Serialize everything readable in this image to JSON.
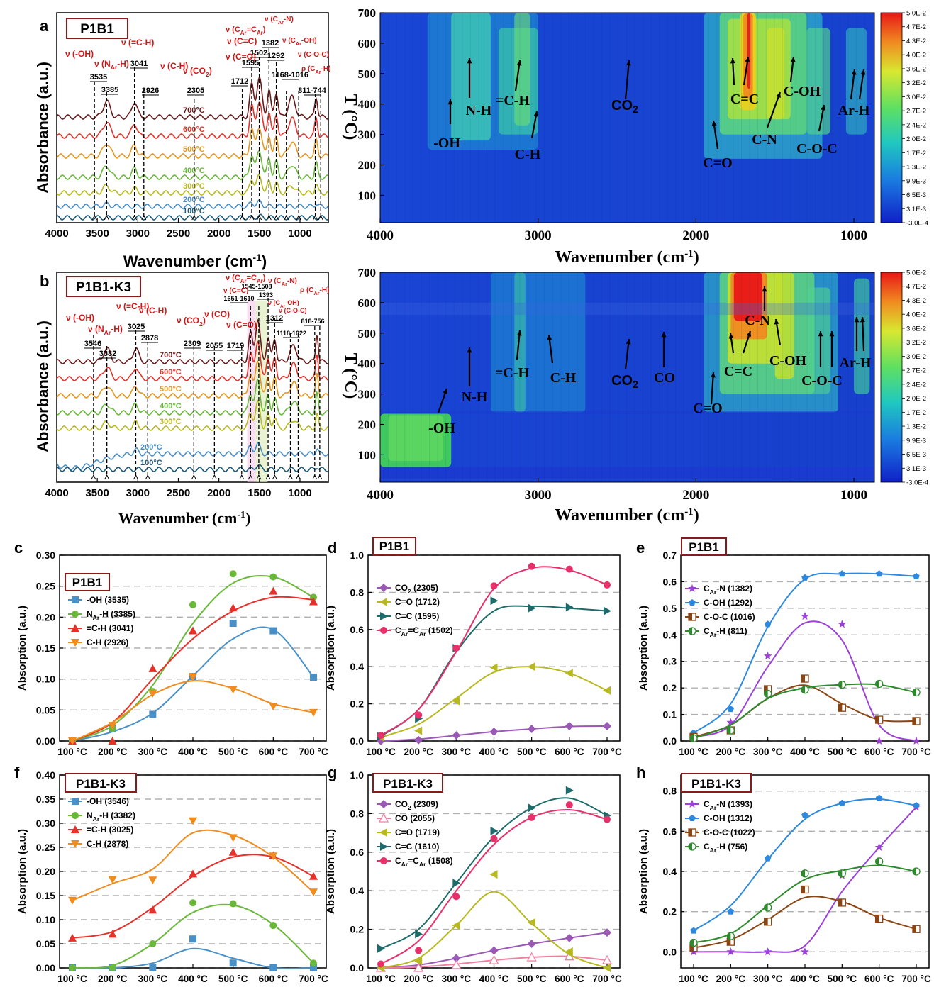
{
  "panels": {
    "a": {
      "letter": "a",
      "title": "P1B1",
      "xlabel": "Wavenumber (cm",
      "xlabel_sup": "-1",
      "xlabel_close": ")",
      "ylabel": "Absorbance (a.u.)",
      "xticks": [
        "4000",
        "3500",
        "3000",
        "2500",
        "2000",
        "1500",
        "1000"
      ],
      "temps": [
        "700°C",
        "600°C",
        "500°C",
        "400°C",
        "300°C",
        "200°C",
        "100°C"
      ],
      "temp_colors": [
        "#6b1a1a",
        "#e8302a",
        "#e6961e",
        "#6ab83a",
        "#b8b820",
        "#4a8ec8",
        "#1c5a7a"
      ],
      "peaks": [
        "3535",
        "3385",
        "3041",
        "2926",
        "2305",
        "1712",
        "1595",
        "1502",
        "1382",
        "1292",
        "1168-1016",
        "811-744"
      ],
      "assign": [
        "ν (-OH)",
        "ν (N",
        "Ar",
        "-H)",
        "ν (=C-H)",
        "ν (C-H)",
        "ν (CO",
        "2",
        ")",
        "ν (C=O)",
        "ν (C=C)",
        "ν (C",
        "Ar",
        "=C",
        "Ar",
        ")",
        "ν (C",
        "Ar",
        "-N)",
        "ν (C",
        "Ar",
        "-OH)",
        "ν (C-O-C)",
        "ρ (C",
        "Ar",
        "-H)"
      ]
    },
    "b": {
      "letter": "b",
      "title": "P1B1-K3",
      "xlabel": "Wavenumber (cm",
      "xlabel_sup": "-1",
      "xlabel_close": ")",
      "ylabel": "Absorbance (a.u.)",
      "xticks": [
        "4000",
        "3500",
        "3000",
        "2500",
        "2000",
        "1500",
        "1000"
      ],
      "temps": [
        "700°C",
        "600°C",
        "500°C",
        "400°C",
        "300°C",
        "200°C",
        "100°C"
      ],
      "peaks": [
        "3546",
        "3382",
        "3025",
        "2878",
        "2309",
        "2055",
        "1719",
        "1651-1610",
        "1545-1508",
        "1393",
        "1312",
        "1118-1022",
        "818-756"
      ],
      "assign": [
        "ν (-OH)",
        "ν (N",
        "Ar",
        "-H)",
        "ν (=C-H)",
        "ν (C-H)",
        "ν (CO",
        "2",
        ")",
        "ν (CO)",
        "ν (C=O)",
        "ν (C=C)",
        "ν (C",
        "Ar",
        "=C",
        "Ar",
        ")",
        "ν (C",
        "Ar",
        "-N)",
        "ν (C",
        "Ar",
        "-OH)",
        "ν (C-O-C)",
        "ρ (C",
        "Ar",
        "-H)"
      ]
    },
    "heat_a": {
      "ylabel": "T (°C)",
      "xlabel": "Wavenumber (cm",
      "xlabel_sup": "-1",
      "xlabel_close": ")",
      "xticks": [
        "4000",
        "3000",
        "2000",
        "1000"
      ],
      "yticks": [
        "100",
        "200",
        "300",
        "400",
        "500",
        "600",
        "700"
      ],
      "labels": [
        "-OH",
        "N-H",
        "=C-H",
        "C-H",
        "CO",
        "2",
        "C=O",
        "C=C",
        "C-N",
        "C-OH",
        "C-O-C",
        "Ar-H"
      ]
    },
    "heat_b": {
      "ylabel": "T (°C)",
      "xlabel": "Wavenumber (cm",
      "xlabel_sup": "-1",
      "xlabel_close": ")",
      "xticks": [
        "4000",
        "3000",
        "2000",
        "1000"
      ],
      "yticks": [
        "100",
        "200",
        "300",
        "400",
        "500",
        "600",
        "700"
      ],
      "labels": [
        "-OH",
        "N-H",
        "=C-H",
        "C-H",
        "CO",
        "2",
        "CO",
        "C=O",
        "C=C",
        "C-N",
        "C-OH",
        "C-O-C",
        "Ar-H"
      ]
    },
    "colorbar": [
      "5.0E-2",
      "4.7E-2",
      "4.3E-2",
      "4.0E-2",
      "3.6E-2",
      "3.2E-2",
      "3.0E-2",
      "2.7E-2",
      "2.4E-2",
      "2.0E-2",
      "1.7E-2",
      "1.3E-2",
      "9.9E-3",
      "6.5E-3",
      "3.1E-3",
      "-3.0E-4"
    ]
  },
  "chart_data": [
    {
      "id": "c",
      "type": "scatter",
      "title": "P1B1",
      "ylabel": "Absorption (a.u.)",
      "ylim": [
        0,
        0.3
      ],
      "yticks": [
        "0.00",
        "0.05",
        "0.10",
        "0.15",
        "0.20",
        "0.25",
        "0.30"
      ],
      "categories": [
        "100 °C",
        "200 °C",
        "300 °C",
        "400 °C",
        "500 °C",
        "600 °C",
        "700 °C"
      ],
      "series": [
        {
          "name": "-OH (3535)",
          "color": "#4a90c8",
          "marker": "square",
          "values": [
            0,
            0.02,
            0.043,
            0.104,
            0.19,
            0.178,
            0.103
          ],
          "fit": [
            0,
            0.015,
            0.045,
            0.105,
            0.165,
            0.18,
            0.103
          ]
        },
        {
          "name": "N",
          "sub": "Ar",
          "name2": "-H (3385)",
          "color": "#6ab83a",
          "marker": "circle",
          "values": [
            0,
            0.02,
            0.08,
            0.22,
            0.27,
            0.265,
            0.232
          ],
          "fit": [
            0,
            0.025,
            0.09,
            0.19,
            0.255,
            0.265,
            0.232
          ]
        },
        {
          "name": "=C-H (3041)",
          "color": "#e8302a",
          "marker": "triangle",
          "values": [
            0,
            0,
            0.117,
            0.178,
            0.215,
            0.242,
            0.225
          ],
          "fit": [
            0,
            0.03,
            0.1,
            0.165,
            0.21,
            0.232,
            0.228
          ]
        },
        {
          "name": "C-H (2926)",
          "color": "#f08c1e",
          "marker": "triangle-down",
          "values": [
            0,
            0.025,
            0.077,
            0.103,
            0.083,
            0.056,
            0.046
          ],
          "fit": [
            0,
            0.03,
            0.075,
            0.097,
            0.085,
            0.06,
            0.046
          ]
        }
      ]
    },
    {
      "id": "d",
      "type": "scatter",
      "title": "P1B1",
      "ylabel": "Absorption (a.u.)",
      "ylim": [
        0,
        1.0
      ],
      "yticks": [
        "0.0",
        "0.2",
        "0.4",
        "0.6",
        "0.8",
        "1.0"
      ],
      "categories": [
        "100 °C",
        "200 °C",
        "300 °C",
        "400 °C",
        "500 °C",
        "600 °C",
        "700 °C"
      ],
      "series": [
        {
          "name": "CO",
          "sub": "2",
          "name2": " (2305)",
          "color": "#9b59b6",
          "marker": "diamond",
          "values": [
            0,
            0.005,
            0.03,
            0.05,
            0.065,
            0.08,
            0.08
          ],
          "fit": [
            0,
            0.01,
            0.03,
            0.05,
            0.065,
            0.078,
            0.08
          ]
        },
        {
          "name": "C=O (1712)",
          "color": "#b8b820",
          "marker": "triangle-left",
          "values": [
            0.02,
            0.055,
            0.215,
            0.395,
            0.4,
            0.365,
            0.272
          ],
          "fit": [
            0.02,
            0.09,
            0.23,
            0.37,
            0.4,
            0.365,
            0.272
          ]
        },
        {
          "name": "C=C (1595)",
          "color": "#1e6b6b",
          "marker": "triangle-right",
          "values": [
            0.025,
            0.12,
            0.5,
            0.755,
            0.715,
            0.72,
            0.7
          ],
          "fit": [
            0.025,
            0.17,
            0.48,
            0.7,
            0.725,
            0.715,
            0.7
          ]
        },
        {
          "name": "C",
          "sub": "Ar",
          "name2": "=C",
          "sub2": "Ar",
          "name3": " (1502)",
          "color": "#e8306a",
          "marker": "circle",
          "values": [
            0.03,
            0.14,
            0.5,
            0.835,
            0.94,
            0.925,
            0.84
          ],
          "fit": [
            0.03,
            0.17,
            0.48,
            0.82,
            0.93,
            0.92,
            0.84
          ]
        }
      ]
    },
    {
      "id": "e",
      "type": "scatter",
      "title": "P1B1",
      "ylabel": "Absorption (a.u.)",
      "ylim": [
        0,
        0.7
      ],
      "yticks": [
        "0.0",
        "0.1",
        "0.2",
        "0.3",
        "0.4",
        "0.5",
        "0.6",
        "0.7"
      ],
      "categories": [
        "100 °C",
        "200 °C",
        "300 °C",
        "400 °C",
        "500 °C",
        "600 °C",
        "700 °C"
      ],
      "series": [
        {
          "name": "C",
          "sub": "Ar",
          "name2": "-N (1382)",
          "color": "#9b40d8",
          "marker": "star",
          "values": [
            0.015,
            0.07,
            0.32,
            0.47,
            0.44,
            0,
            0
          ],
          "fit": [
            0.015,
            0.06,
            0.28,
            0.445,
            0.38,
            0.06,
            0
          ]
        },
        {
          "name": "C-OH (1292)",
          "color": "#2d88e0",
          "marker": "pentagon",
          "values": [
            0.03,
            0.12,
            0.44,
            0.615,
            0.63,
            0.63,
            0.62
          ],
          "fit": [
            0.03,
            0.14,
            0.43,
            0.61,
            0.63,
            0.63,
            0.62
          ]
        },
        {
          "name": "C-O-C (1016)",
          "color": "#8b4513",
          "marker": "half-square",
          "values": [
            0.015,
            0.04,
            0.195,
            0.235,
            0.125,
            0.08,
            0.075
          ],
          "fit": [
            0.015,
            0.06,
            0.16,
            0.21,
            0.14,
            0.08,
            0.075
          ]
        },
        {
          "name": "C",
          "sub": "Ar",
          "name2": "-H (811)",
          "color": "#2d8a2d",
          "marker": "half-circle",
          "values": [
            0.01,
            0.04,
            0.178,
            0.193,
            0.212,
            0.215,
            0.183
          ],
          "fit": [
            0.01,
            0.06,
            0.16,
            0.2,
            0.212,
            0.212,
            0.183
          ]
        }
      ]
    },
    {
      "id": "f",
      "type": "scatter",
      "title": "P1B1-K3",
      "ylabel": "Absorption (a.u.)",
      "ylim": [
        0,
        0.4
      ],
      "yticks": [
        "0.00",
        "0.05",
        "0.10",
        "0.15",
        "0.20",
        "0.25",
        "0.30",
        "0.35",
        "0.40"
      ],
      "categories": [
        "100 °C",
        "200 °C",
        "300 °C",
        "400 °C",
        "500 °C",
        "600 °C",
        "700 °C"
      ],
      "series": [
        {
          "name": "-OH (3546)",
          "color": "#4a90c8",
          "marker": "square",
          "values": [
            0,
            0,
            0,
            0.06,
            0.01,
            0,
            0
          ],
          "fit": [
            0,
            0,
            0.01,
            0.04,
            0.02,
            0,
            0
          ]
        },
        {
          "name": "N",
          "sub": "Ar",
          "name2": "-H (3382)",
          "color": "#6ab83a",
          "marker": "circle",
          "values": [
            0,
            0,
            0.05,
            0.135,
            0.133,
            0.088,
            0.01
          ],
          "fit": [
            0,
            0.005,
            0.05,
            0.115,
            0.13,
            0.09,
            0.01
          ]
        },
        {
          "name": "=C-H (3025)",
          "color": "#e8302a",
          "marker": "triangle",
          "values": [
            0.062,
            0.07,
            0.12,
            0.195,
            0.24,
            0.233,
            0.19
          ],
          "fit": [
            0.062,
            0.075,
            0.125,
            0.19,
            0.23,
            0.23,
            0.19
          ]
        },
        {
          "name": "C-H (2878)",
          "color": "#f08c1e",
          "marker": "triangle-down",
          "values": [
            0.14,
            0.183,
            0.182,
            0.305,
            0.27,
            0.232,
            0.157
          ],
          "fit": [
            0.14,
            0.175,
            0.205,
            0.28,
            0.275,
            0.23,
            0.157
          ]
        }
      ]
    },
    {
      "id": "g",
      "type": "scatter",
      "title": "P1B1-K3",
      "ylabel": "Absorption (a.u.)",
      "ylim": [
        0,
        1.0
      ],
      "yticks": [
        "0.0",
        "0.2",
        "0.4",
        "0.6",
        "0.8",
        "1.0"
      ],
      "categories": [
        "100 °C",
        "200 °C",
        "300 °C",
        "400 °C",
        "500 °C",
        "600 °C",
        "700 °C"
      ],
      "series": [
        {
          "name": "CO",
          "sub": "2",
          "name2": " (2309)",
          "color": "#9b59b6",
          "marker": "diamond",
          "values": [
            0,
            0.005,
            0.05,
            0.09,
            0.125,
            0.155,
            0.183
          ],
          "fit": [
            0,
            0.015,
            0.05,
            0.09,
            0.125,
            0.155,
            0.183
          ]
        },
        {
          "name": "CO (2055)",
          "color": "#f080a0",
          "marker": "triangle-open",
          "values": [
            0,
            0,
            0.015,
            0.04,
            0.055,
            0.06,
            0.04
          ],
          "fit": [
            0,
            0.005,
            0.02,
            0.04,
            0.055,
            0.06,
            0.04
          ]
        },
        {
          "name": "C=O (1719)",
          "color": "#b8b820",
          "marker": "triangle-left",
          "values": [
            0,
            0.035,
            0.22,
            0.485,
            0.235,
            0.085,
            0
          ],
          "fit": [
            0,
            0.05,
            0.22,
            0.395,
            0.23,
            0.07,
            0
          ]
        },
        {
          "name": "C=C (1610)",
          "color": "#1e6b6b",
          "marker": "triangle-right",
          "values": [
            0.1,
            0.175,
            0.44,
            0.71,
            0.83,
            0.92,
            0.79
          ],
          "fit": [
            0.1,
            0.2,
            0.44,
            0.68,
            0.83,
            0.88,
            0.79
          ]
        },
        {
          "name": "C",
          "sub": "Ar",
          "name2": "=C",
          "sub2": "Ar",
          "name3": " (1508)",
          "color": "#e8306a",
          "marker": "circle",
          "values": [
            0.02,
            0.09,
            0.37,
            0.67,
            0.78,
            0.845,
            0.77
          ],
          "fit": [
            0.02,
            0.14,
            0.4,
            0.64,
            0.78,
            0.82,
            0.77
          ]
        }
      ]
    },
    {
      "id": "h",
      "type": "scatter",
      "title": "P1B1-K3",
      "ylabel": "Absorption (a.u.)",
      "ylim": [
        -0.08,
        0.88
      ],
      "yticks": [
        "0.0",
        "0.2",
        "0.4",
        "0.6",
        "0.8"
      ],
      "ytick_vals": [
        0,
        0.2,
        0.4,
        0.6,
        0.8
      ],
      "categories": [
        "100 °C",
        "200 °C",
        "300 °C",
        "400 °C",
        "500 °C",
        "600 °C",
        "700 °C"
      ],
      "series": [
        {
          "name": "C",
          "sub": "Ar",
          "name2": "-N (1393)",
          "color": "#9b40d8",
          "marker": "star",
          "values": [
            0,
            0,
            0,
            0,
            0.38,
            0.52,
            0.72
          ],
          "fit": [
            0,
            0,
            0,
            0.03,
            0.3,
            0.52,
            0.72
          ]
        },
        {
          "name": "C-OH (1312)",
          "color": "#2d88e0",
          "marker": "pentagon",
          "values": [
            0.105,
            0.2,
            0.465,
            0.68,
            0.74,
            0.765,
            0.728
          ],
          "fit": [
            0.105,
            0.23,
            0.46,
            0.66,
            0.74,
            0.76,
            0.728
          ]
        },
        {
          "name": "C-O-C (1022)",
          "color": "#8b4513",
          "marker": "half-square",
          "values": [
            0.02,
            0.05,
            0.15,
            0.31,
            0.245,
            0.165,
            0.113
          ],
          "fit": [
            0.02,
            0.06,
            0.16,
            0.27,
            0.25,
            0.17,
            0.113
          ]
        },
        {
          "name": "C",
          "sub": "Ar",
          "name2": "-H (756)",
          "color": "#2d8a2d",
          "marker": "half-circle",
          "values": [
            0.045,
            0.078,
            0.22,
            0.39,
            0.39,
            0.45,
            0.4
          ],
          "fit": [
            0.045,
            0.09,
            0.23,
            0.36,
            0.405,
            0.43,
            0.4
          ]
        }
      ]
    }
  ]
}
